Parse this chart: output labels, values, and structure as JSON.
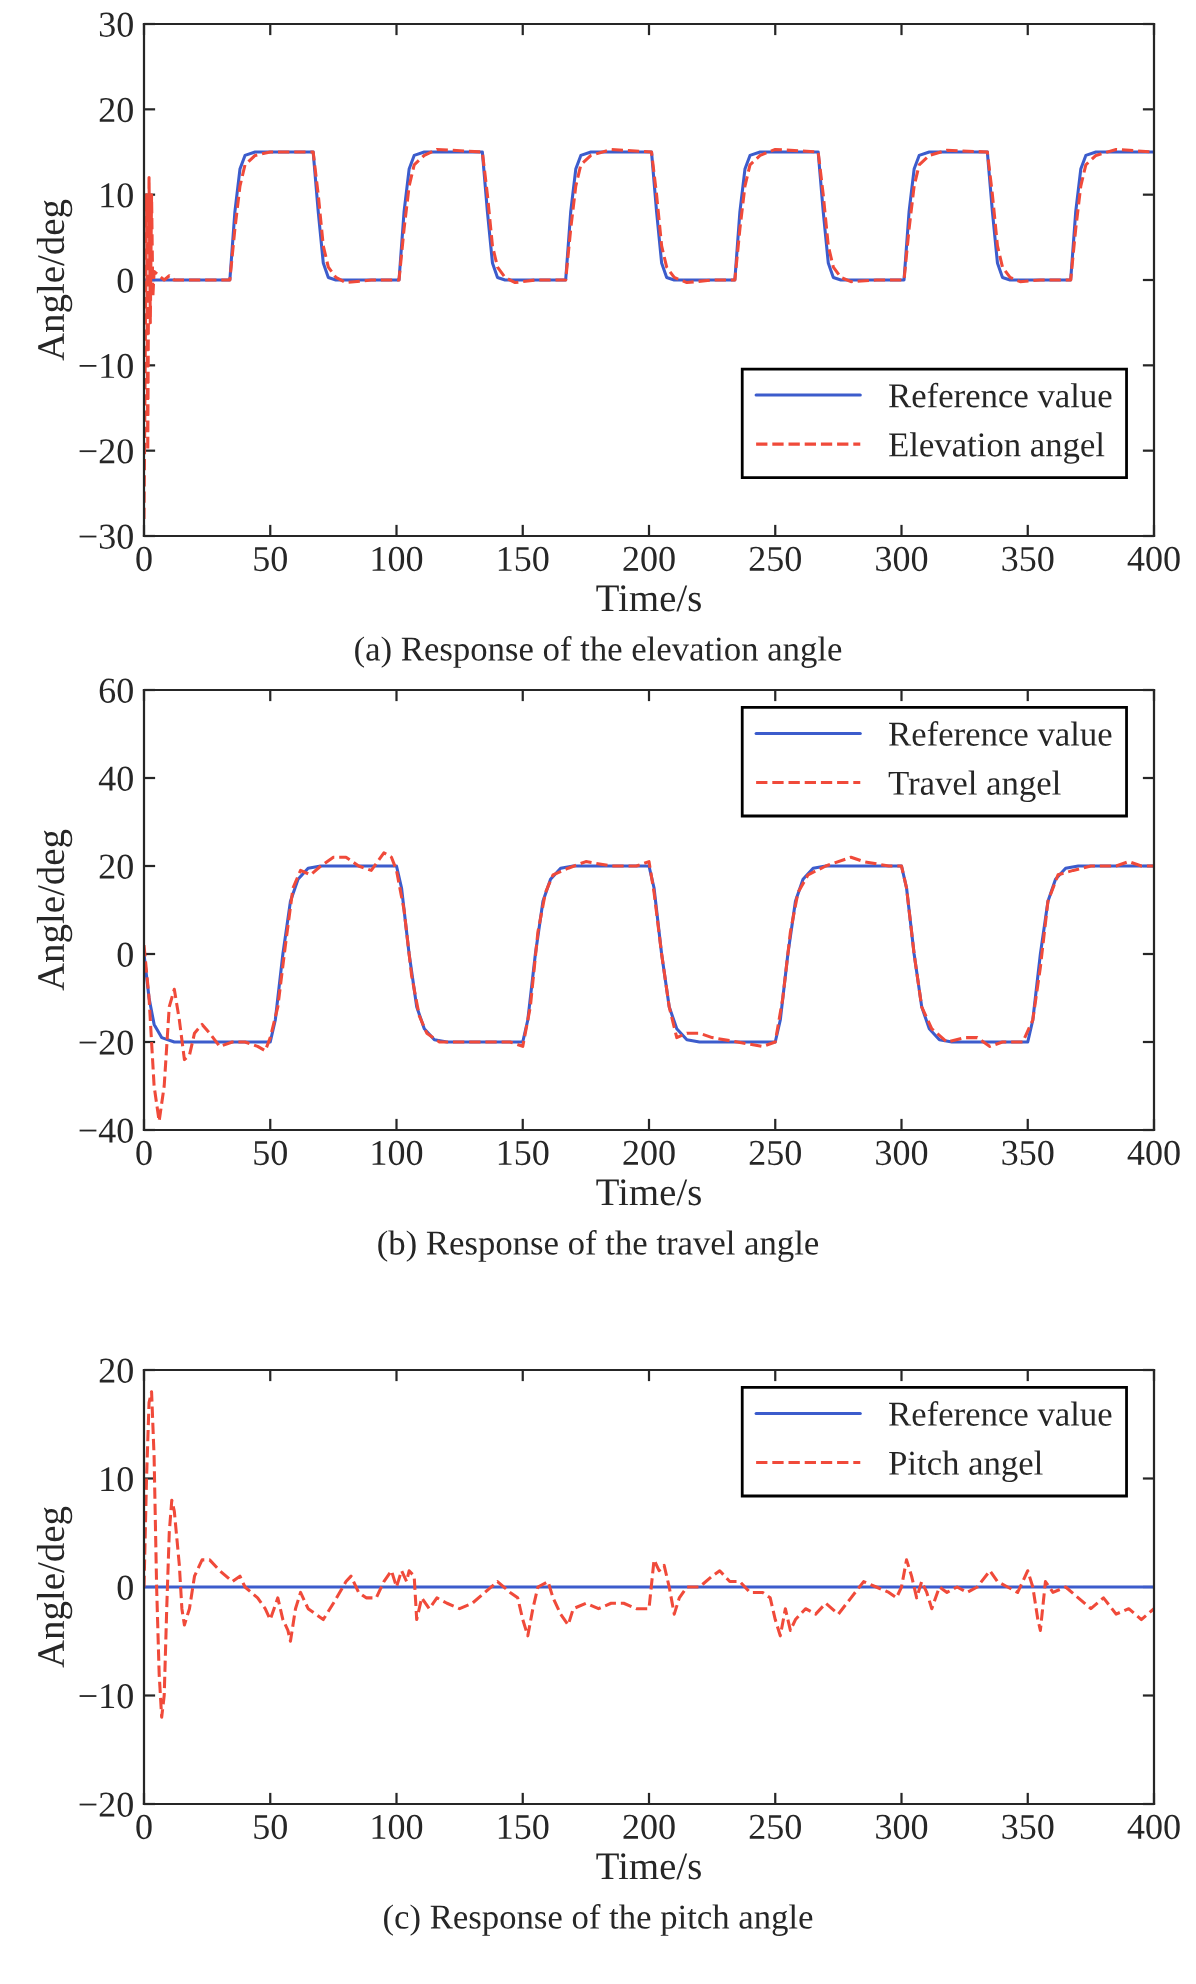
{
  "chart_data": [
    {
      "type": "line",
      "xlabel": "Time/s",
      "ylabel": "Angle/deg",
      "annotations": [
        "(a) Response of the elevation angle"
      ],
      "xlim": [
        0,
        400
      ],
      "xticks": [
        0,
        50,
        100,
        150,
        200,
        250,
        300,
        350,
        400
      ],
      "ylim": [
        -30,
        30
      ],
      "yticks": [
        {
          "value": -30,
          "label": "−30"
        },
        {
          "value": -20,
          "label": "−20"
        },
        {
          "value": -10,
          "label": "−10"
        },
        0,
        10,
        20,
        30
      ],
      "legend": "bottom right",
      "series": [
        {
          "name": "Reference value",
          "color": "#3c5ccc",
          "line_style": "solid",
          "x": [
            0,
            34,
            36,
            38,
            40,
            44,
            67,
            69,
            71,
            73,
            76,
            101,
            103,
            105,
            107,
            111,
            134,
            136,
            138,
            140,
            143,
            167,
            169,
            171,
            173,
            177,
            201,
            203,
            205,
            207,
            210,
            234,
            236,
            238,
            240,
            244,
            267,
            269,
            271,
            273,
            276,
            301,
            303,
            305,
            307,
            311,
            334,
            336,
            338,
            340,
            343,
            367,
            369,
            371,
            373,
            377,
            400
          ],
          "values": [
            0,
            0,
            8,
            13,
            14.6,
            15,
            15,
            8,
            2,
            0.3,
            0,
            0,
            8,
            13,
            14.6,
            15,
            15,
            8,
            2,
            0.3,
            0,
            0,
            8,
            13,
            14.6,
            15,
            15,
            8,
            2,
            0.3,
            0,
            0,
            8,
            13,
            14.6,
            15,
            15,
            8,
            2,
            0.3,
            0,
            0,
            8,
            13,
            14.6,
            15,
            15,
            8,
            2,
            0.3,
            0,
            0,
            8,
            13,
            14.6,
            15,
            15
          ]
        },
        {
          "name": "Elevation angel",
          "color": "#f04a3a",
          "line_style": "dashed",
          "x": [
            0,
            1,
            1.5,
            2,
            2.5,
            3,
            3.5,
            4,
            6,
            8,
            10,
            12,
            34,
            36,
            38,
            40,
            44,
            50,
            67,
            69,
            71,
            73,
            76,
            80,
            90,
            101,
            103,
            105,
            107,
            111,
            116,
            134,
            136,
            138,
            140,
            143,
            147,
            155,
            167,
            169,
            171,
            173,
            177,
            185,
            201,
            203,
            205,
            207,
            210,
            215,
            225,
            234,
            236,
            238,
            240,
            244,
            250,
            267,
            269,
            271,
            273,
            276,
            280,
            290,
            301,
            303,
            305,
            307,
            311,
            318,
            334,
            336,
            338,
            340,
            343,
            347,
            355,
            367,
            369,
            371,
            373,
            377,
            385,
            400
          ],
          "values": [
            -28,
            10,
            -20,
            12,
            -5,
            10,
            -2,
            1,
            0.5,
            0,
            0.5,
            0,
            0,
            6,
            11,
            13.5,
            14.6,
            15,
            15,
            10,
            4,
            1.5,
            0.3,
            -0.3,
            0,
            0,
            6,
            11,
            13.5,
            14.6,
            15.3,
            15,
            10,
            4,
            1.5,
            0.3,
            -0.3,
            0,
            0,
            6,
            11,
            13.5,
            14.6,
            15.3,
            15,
            10,
            4,
            1.5,
            0.3,
            -0.3,
            0,
            0,
            6,
            11,
            13.5,
            14.6,
            15.3,
            15,
            10,
            4,
            1.5,
            0.3,
            -0.2,
            0,
            0,
            6,
            11,
            13.5,
            14.6,
            15.2,
            15,
            10,
            4,
            1.5,
            0.3,
            -0.2,
            0,
            0,
            6,
            11,
            13.5,
            14.6,
            15.3,
            15
          ]
        }
      ]
    },
    {
      "type": "line",
      "xlabel": "Time/s",
      "ylabel": "Angle/deg",
      "annotations": [
        "(b) Response of the travel angle"
      ],
      "xlim": [
        0,
        400
      ],
      "xticks": [
        0,
        50,
        100,
        150,
        200,
        250,
        300,
        350,
        400
      ],
      "ylim": [
        -40,
        60
      ],
      "yticks": [
        {
          "value": -40,
          "label": "−40"
        },
        {
          "value": -20,
          "label": "−20"
        },
        0,
        20,
        40,
        60
      ],
      "legend": "top right",
      "series": [
        {
          "name": "Reference value",
          "color": "#3c5ccc",
          "line_style": "solid",
          "x": [
            0,
            2,
            4,
            7,
            12,
            50,
            52,
            55,
            58,
            61,
            65,
            70,
            100,
            102,
            105,
            108,
            111,
            115,
            120,
            150,
            152,
            155,
            158,
            161,
            165,
            170,
            200,
            202,
            205,
            208,
            211,
            215,
            220,
            250,
            252,
            255,
            258,
            261,
            265,
            270,
            300,
            302,
            305,
            308,
            311,
            315,
            320,
            350,
            352,
            355,
            358,
            361,
            365,
            370,
            400
          ],
          "values": [
            0,
            -10,
            -16,
            -19,
            -20,
            -20,
            -15,
            0,
            12,
            17,
            19.5,
            20,
            20,
            15,
            0,
            -12,
            -17,
            -19.5,
            -20,
            -20,
            -15,
            0,
            12,
            17,
            19.5,
            20,
            20,
            15,
            0,
            -12,
            -17,
            -19.5,
            -20,
            -20,
            -15,
            0,
            12,
            17,
            19.5,
            20,
            20,
            15,
            0,
            -12,
            -17,
            -19.5,
            -20,
            -20,
            -15,
            0,
            12,
            17,
            19.5,
            20,
            20
          ]
        },
        {
          "name": "Travel angel",
          "color": "#f04a3a",
          "line_style": "dashed",
          "x": [
            0,
            2,
            4,
            6,
            8,
            10,
            12,
            14,
            16,
            18,
            20,
            23,
            26,
            30,
            35,
            40,
            45,
            48,
            50,
            53,
            56,
            59,
            62,
            66,
            70,
            75,
            80,
            85,
            90,
            95,
            98,
            100,
            103,
            106,
            109,
            112,
            117,
            125,
            135,
            145,
            150,
            153,
            156,
            159,
            162,
            168,
            175,
            185,
            195,
            200,
            202,
            205,
            208,
            211,
            215,
            220,
            225,
            235,
            245,
            250,
            253,
            256,
            259,
            263,
            270,
            280,
            285,
            295,
            300,
            302,
            305,
            308,
            312,
            318,
            325,
            330,
            335,
            340,
            348,
            352,
            355,
            358,
            362,
            368,
            375,
            385,
            390,
            395,
            400
          ],
          "values": [
            2,
            -10,
            -30,
            -38,
            -30,
            -12,
            -8,
            -15,
            -24,
            -23,
            -18,
            -16,
            -18,
            -21,
            -20,
            -20,
            -21,
            -22,
            -19,
            -12,
            2,
            15,
            19,
            18,
            20,
            22,
            22,
            20,
            19,
            23,
            22,
            19,
            10,
            -5,
            -14,
            -18,
            -20,
            -20,
            -20,
            -20,
            -21,
            -12,
            5,
            14,
            18,
            19.5,
            21,
            20,
            20,
            21,
            14,
            0,
            -12,
            -19,
            -18,
            -18,
            -19,
            -20,
            -21,
            -20,
            -10,
            5,
            14,
            18,
            20,
            22,
            21,
            20,
            20,
            15,
            0,
            -12,
            -17,
            -20,
            -19,
            -19,
            -21,
            -20,
            -20,
            -15,
            -3,
            12,
            18,
            19,
            20,
            20,
            21,
            20,
            20
          ]
        }
      ]
    },
    {
      "type": "line",
      "xlabel": "Time/s",
      "ylabel": "Angle/deg",
      "annotations": [
        "(c) Response of the pitch angle"
      ],
      "xlim": [
        0,
        400
      ],
      "xticks": [
        0,
        50,
        100,
        150,
        200,
        250,
        300,
        350,
        400
      ],
      "ylim": [
        -20,
        20
      ],
      "yticks": [
        {
          "value": -20,
          "label": "−20"
        },
        {
          "value": -10,
          "label": "−10"
        },
        0,
        10,
        20
      ],
      "legend": "top right",
      "series": [
        {
          "name": "Reference value",
          "color": "#3c5ccc",
          "line_style": "solid",
          "x": [
            0,
            400
          ],
          "values": [
            0,
            0
          ]
        },
        {
          "name": "Pitch angel",
          "color": "#f04a3a",
          "line_style": "dashed",
          "x": [
            0,
            1,
            2,
            3,
            4,
            5,
            6,
            7,
            8,
            9,
            10,
            11,
            12,
            14,
            15,
            16,
            18,
            20,
            23,
            26,
            30,
            35,
            38,
            40,
            45,
            48,
            50,
            53,
            55,
            57,
            58,
            60,
            62,
            65,
            68,
            71,
            75,
            80,
            82,
            85,
            88,
            92,
            95,
            98,
            100,
            102,
            104,
            105,
            107,
            108,
            110,
            113,
            116,
            120,
            125,
            130,
            135,
            140,
            145,
            148,
            150,
            152,
            154,
            156,
            160,
            162,
            165,
            168,
            170,
            175,
            180,
            185,
            190,
            195,
            200,
            202,
            204,
            206,
            208,
            210,
            212,
            215,
            220,
            225,
            228,
            232,
            236,
            240,
            245,
            248,
            250,
            252,
            254,
            256,
            258,
            262,
            266,
            270,
            275,
            280,
            285,
            290,
            295,
            298,
            300,
            302,
            304,
            306,
            308,
            310,
            312,
            315,
            318,
            322,
            326,
            330,
            335,
            338,
            342,
            346,
            350,
            352,
            354,
            355,
            357,
            360,
            365,
            370,
            375,
            380,
            385,
            390,
            395,
            400
          ],
          "values": [
            0,
            10,
            17,
            18,
            12,
            0,
            -8,
            -12,
            -10,
            -2,
            5,
            8,
            7,
            2,
            -2,
            -3.5,
            -2,
            1,
            2.5,
            2.5,
            1.5,
            0.5,
            1,
            0,
            -1,
            -2,
            -3,
            -1,
            -3,
            -4,
            -5,
            -2,
            -0.5,
            -2,
            -2.5,
            -3,
            -1.5,
            0.5,
            1,
            -0.5,
            -1,
            -1,
            0.5,
            1.5,
            0,
            1.5,
            0.5,
            1.5,
            1,
            -3,
            -1,
            -2,
            -1,
            -1.5,
            -2,
            -1.5,
            -0.5,
            0.5,
            -0.5,
            -1,
            -3,
            -4.5,
            -2,
            0,
            0.5,
            -1,
            -2.5,
            -3.5,
            -2,
            -1.5,
            -2,
            -1.5,
            -1.5,
            -2,
            -2,
            2.5,
            1.5,
            2,
            0,
            -2.5,
            -1,
            0,
            0,
            1,
            1.5,
            0.5,
            0.5,
            -0.5,
            -0.5,
            -1,
            -3,
            -4.5,
            -2,
            -4,
            -3,
            -2,
            -2.5,
            -1.5,
            -2.5,
            -1,
            0.5,
            0,
            -0.5,
            -1,
            0,
            2.5,
            1,
            -1,
            0.5,
            -0.5,
            -2,
            0,
            -0.5,
            0,
            -0.5,
            0,
            1.5,
            0.5,
            0,
            -0.5,
            1.5,
            0,
            -3,
            -4,
            0.5,
            -0.5,
            0,
            -1,
            -2,
            -1,
            -2.5,
            -2,
            -3,
            -2
          ]
        }
      ]
    }
  ]
}
